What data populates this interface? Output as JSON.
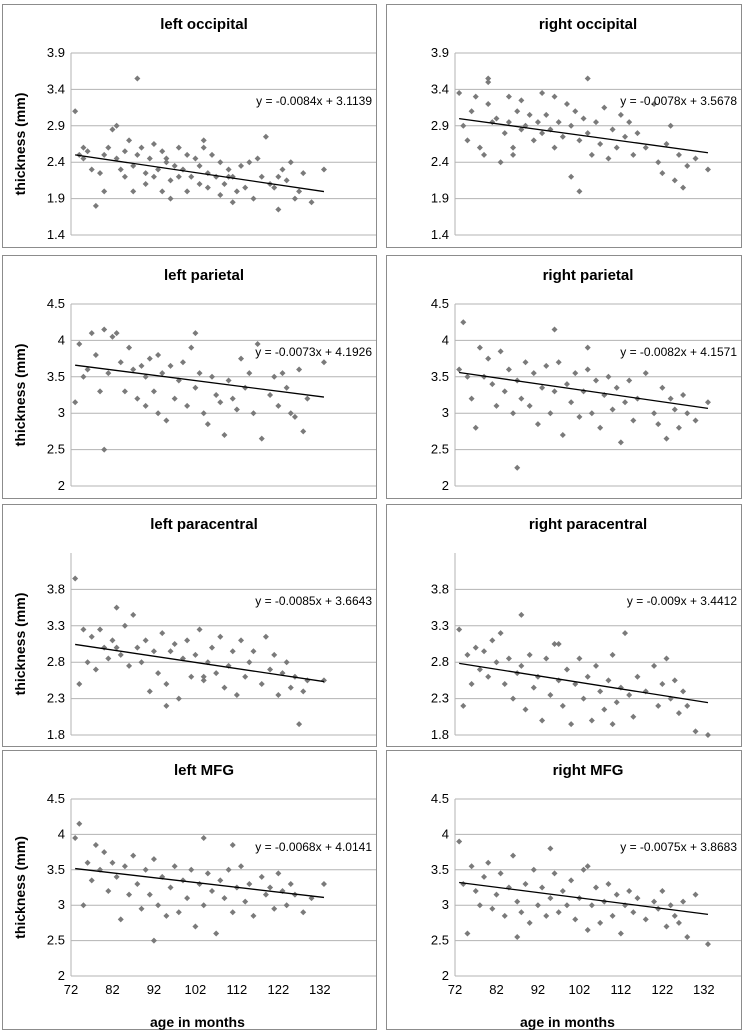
{
  "colors": {
    "marker": "#7a7a7a",
    "gridline": "#b3b3b3",
    "trend": "#000000",
    "panel_border": "#8c8c8c"
  },
  "chart_data": [
    {
      "type": "scatter",
      "title": "left occipital",
      "ylabel": "thickness (mm)",
      "xlabel": "",
      "xlim": [
        72,
        140
      ],
      "ylim": [
        1.4,
        3.9
      ],
      "yticks": [
        "1.4",
        "1.9",
        "2.4",
        "2.9",
        "3.4",
        "3.9"
      ],
      "xticks": [],
      "trendline": {
        "slope": -0.0084,
        "intercept": 3.1139,
        "x_range": [
          73,
          133
        ],
        "label": "y = -0.0084x + 3.1139"
      },
      "x": [
        73,
        74,
        75,
        75,
        76,
        77,
        78,
        79,
        80,
        80,
        81,
        82,
        83,
        83,
        84,
        85,
        85,
        86,
        87,
        87,
        88,
        89,
        90,
        90,
        91,
        92,
        92,
        93,
        94,
        94,
        95,
        96,
        96,
        97,
        98,
        98,
        99,
        100,
        100,
        101,
        102,
        103,
        103,
        104,
        105,
        105,
        106,
        107,
        108,
        108,
        109,
        110,
        111,
        111,
        112,
        113,
        114,
        115,
        116,
        117,
        118,
        119,
        120,
        121,
        122,
        122,
        123,
        124,
        125,
        126,
        127,
        128,
        130,
        133,
        88,
        95,
        104,
        110
      ],
      "y": [
        3.1,
        2.5,
        2.45,
        2.6,
        2.55,
        2.3,
        1.8,
        2.25,
        2.0,
        2.5,
        2.6,
        2.85,
        2.45,
        2.9,
        2.3,
        2.55,
        2.2,
        2.7,
        2.0,
        2.35,
        2.5,
        2.6,
        2.25,
        2.1,
        2.45,
        2.65,
        2.2,
        2.3,
        2.0,
        2.55,
        2.4,
        1.9,
        2.15,
        2.35,
        2.6,
        2.2,
        2.3,
        2.5,
        2.0,
        2.2,
        2.45,
        2.1,
        2.35,
        2.7,
        2.25,
        2.05,
        2.5,
        2.2,
        1.95,
        2.4,
        2.1,
        2.3,
        1.85,
        2.2,
        2.0,
        2.35,
        2.05,
        2.4,
        1.9,
        2.45,
        2.2,
        2.75,
        2.1,
        2.05,
        1.75,
        2.2,
        2.3,
        2.15,
        2.4,
        1.9,
        2.0,
        2.25,
        1.85,
        2.3,
        3.55,
        2.45,
        2.6,
        2.2
      ]
    },
    {
      "type": "scatter",
      "title": "right occipital",
      "ylabel": "",
      "xlabel": "",
      "xlim": [
        72,
        140
      ],
      "ylim": [
        1.4,
        3.9
      ],
      "yticks": [
        "1.4",
        "1.9",
        "2.4",
        "2.9",
        "3.4",
        "3.9"
      ],
      "xticks": [],
      "trendline": {
        "slope": -0.0078,
        "intercept": 3.5678,
        "x_range": [
          73,
          133
        ],
        "label": "y = -0.0078x + 3.5678"
      },
      "x": [
        73,
        74,
        75,
        76,
        77,
        78,
        79,
        80,
        80,
        81,
        82,
        83,
        84,
        85,
        85,
        86,
        87,
        88,
        88,
        89,
        90,
        91,
        92,
        93,
        93,
        94,
        95,
        96,
        97,
        98,
        99,
        100,
        100,
        101,
        102,
        102,
        103,
        104,
        105,
        106,
        107,
        108,
        109,
        110,
        111,
        112,
        113,
        114,
        115,
        116,
        118,
        120,
        121,
        122,
        123,
        124,
        125,
        126,
        127,
        128,
        130,
        133,
        80,
        86,
        96,
        104
      ],
      "y": [
        3.35,
        2.9,
        2.7,
        3.1,
        3.3,
        2.6,
        2.5,
        3.5,
        3.2,
        2.95,
        3.0,
        2.4,
        2.8,
        3.3,
        2.95,
        2.6,
        3.1,
        2.85,
        3.25,
        2.9,
        3.05,
        2.7,
        2.95,
        3.35,
        2.8,
        3.05,
        2.85,
        2.6,
        2.95,
        2.75,
        3.2,
        2.9,
        2.2,
        3.1,
        2.7,
        2.0,
        3.0,
        2.8,
        2.5,
        2.95,
        2.65,
        3.15,
        2.45,
        2.85,
        2.6,
        3.05,
        2.75,
        2.95,
        2.5,
        2.8,
        2.6,
        3.2,
        2.4,
        2.25,
        2.65,
        2.9,
        2.15,
        2.5,
        2.05,
        2.35,
        2.45,
        2.3,
        3.55,
        2.5,
        3.3,
        3.55
      ]
    },
    {
      "type": "scatter",
      "title": "left parietal",
      "ylabel": "thickness (mm)",
      "xlabel": "",
      "xlim": [
        72,
        140
      ],
      "ylim": [
        2,
        4.5
      ],
      "yticks": [
        "2",
        "2.5",
        "3",
        "3.5",
        "4",
        "4.5"
      ],
      "xticks": [],
      "trendline": {
        "slope": -0.0073,
        "intercept": 4.1926,
        "x_range": [
          73,
          133
        ],
        "label": "y = -0.0073x + 4.1926"
      },
      "x": [
        73,
        74,
        75,
        76,
        77,
        78,
        79,
        80,
        81,
        82,
        83,
        84,
        85,
        86,
        87,
        88,
        89,
        90,
        90,
        91,
        92,
        93,
        94,
        95,
        96,
        97,
        98,
        99,
        100,
        101,
        102,
        103,
        104,
        105,
        106,
        107,
        108,
        109,
        110,
        111,
        112,
        113,
        114,
        115,
        116,
        118,
        120,
        121,
        122,
        123,
        124,
        125,
        126,
        127,
        128,
        129,
        133,
        80,
        93,
        102,
        117
      ],
      "y": [
        3.15,
        3.95,
        3.5,
        3.6,
        4.1,
        3.8,
        3.3,
        4.15,
        3.55,
        4.05,
        4.1,
        3.7,
        3.3,
        3.9,
        3.6,
        3.2,
        3.65,
        3.1,
        3.5,
        3.75,
        3.3,
        3.0,
        3.55,
        2.9,
        3.65,
        3.2,
        3.45,
        3.7,
        3.1,
        3.9,
        3.35,
        3.55,
        3.0,
        2.85,
        3.5,
        3.25,
        3.15,
        2.7,
        3.45,
        3.2,
        3.05,
        3.75,
        3.35,
        3.55,
        3.0,
        2.65,
        3.25,
        3.5,
        3.1,
        3.55,
        3.35,
        3.0,
        2.95,
        3.6,
        2.75,
        3.2,
        3.7,
        2.5,
        3.8,
        4.1,
        3.95
      ]
    },
    {
      "type": "scatter",
      "title": "right parietal",
      "ylabel": "",
      "xlabel": "",
      "xlim": [
        72,
        140
      ],
      "ylim": [
        2,
        4.5
      ],
      "yticks": [
        "2",
        "2.5",
        "3",
        "3.5",
        "4",
        "4.5"
      ],
      "xticks": [],
      "trendline": {
        "slope": -0.0082,
        "intercept": 4.1571,
        "x_range": [
          73,
          133
        ],
        "label": "y = -0.0082x + 4.1571"
      },
      "x": [
        73,
        74,
        75,
        76,
        77,
        78,
        79,
        80,
        81,
        82,
        83,
        84,
        85,
        86,
        87,
        88,
        89,
        90,
        91,
        92,
        93,
        94,
        95,
        96,
        97,
        98,
        99,
        100,
        101,
        102,
        103,
        104,
        105,
        106,
        107,
        108,
        109,
        110,
        111,
        112,
        113,
        114,
        115,
        116,
        118,
        120,
        121,
        122,
        123,
        124,
        125,
        126,
        127,
        128,
        130,
        133,
        87,
        96,
        104
      ],
      "y": [
        3.6,
        4.25,
        3.5,
        3.2,
        2.8,
        3.9,
        3.5,
        3.75,
        3.4,
        3.1,
        3.85,
        3.3,
        3.6,
        3.0,
        3.45,
        3.2,
        3.7,
        3.1,
        3.55,
        2.85,
        3.35,
        3.65,
        3.0,
        3.3,
        3.7,
        2.7,
        3.4,
        3.15,
        3.55,
        2.95,
        3.3,
        3.6,
        3.0,
        3.45,
        2.8,
        3.25,
        3.5,
        3.05,
        3.35,
        2.6,
        3.15,
        3.45,
        2.9,
        3.2,
        3.55,
        3.0,
        2.85,
        3.35,
        2.65,
        3.2,
        3.05,
        2.8,
        3.25,
        3.0,
        2.9,
        3.15,
        2.25,
        4.15,
        3.9
      ]
    },
    {
      "type": "scatter",
      "title": "left paracentral",
      "ylabel": "thickness (mm)",
      "xlabel": "",
      "xlim": [
        72,
        140
      ],
      "ylim": [
        1.8,
        4.3
      ],
      "yticks": [
        "1.8",
        "2.3",
        "2.8",
        "3.3",
        "3.8"
      ],
      "xticks": [],
      "trendline": {
        "slope": -0.0085,
        "intercept": 3.6643,
        "x_range": [
          73,
          133
        ],
        "label": "y = -0.0085x + 3.6643"
      },
      "x": [
        73,
        74,
        75,
        76,
        77,
        78,
        79,
        80,
        81,
        82,
        83,
        84,
        85,
        86,
        87,
        88,
        89,
        90,
        91,
        92,
        93,
        94,
        95,
        96,
        97,
        98,
        99,
        100,
        101,
        102,
        103,
        104,
        105,
        106,
        107,
        108,
        109,
        110,
        111,
        112,
        113,
        114,
        115,
        116,
        118,
        119,
        120,
        121,
        122,
        123,
        124,
        125,
        126,
        127,
        128,
        129,
        133,
        83,
        95,
        104
      ],
      "y": [
        3.95,
        2.5,
        3.25,
        2.8,
        3.15,
        2.7,
        3.25,
        3.0,
        2.85,
        3.1,
        3.55,
        2.9,
        3.3,
        2.75,
        3.45,
        3.0,
        2.8,
        3.1,
        2.4,
        2.95,
        2.65,
        3.2,
        2.5,
        2.95,
        3.05,
        2.3,
        2.85,
        3.1,
        2.6,
        2.9,
        3.25,
        2.55,
        2.8,
        3.0,
        2.65,
        3.15,
        2.45,
        2.75,
        2.95,
        2.35,
        3.1,
        2.6,
        2.8,
        2.95,
        2.5,
        3.15,
        2.7,
        2.9,
        2.35,
        2.65,
        2.8,
        2.45,
        2.6,
        1.95,
        2.4,
        2.55,
        2.55,
        3.0,
        2.2,
        2.6
      ]
    },
    {
      "type": "scatter",
      "title": "right paracentral",
      "ylabel": "",
      "xlabel": "",
      "xlim": [
        72,
        140
      ],
      "ylim": [
        1.8,
        4.3
      ],
      "yticks": [
        "1.8",
        "2.3",
        "2.8",
        "3.3",
        "3.8"
      ],
      "xticks": [],
      "trendline": {
        "slope": -0.009,
        "intercept": 3.4412,
        "x_range": [
          73,
          133
        ],
        "label": "y = -0.009x + 3.4412"
      },
      "x": [
        73,
        74,
        75,
        76,
        77,
        78,
        79,
        80,
        81,
        82,
        83,
        84,
        85,
        86,
        87,
        88,
        89,
        90,
        91,
        92,
        93,
        94,
        95,
        96,
        97,
        98,
        99,
        100,
        101,
        102,
        103,
        104,
        105,
        106,
        107,
        108,
        109,
        110,
        111,
        112,
        113,
        114,
        115,
        116,
        118,
        120,
        121,
        122,
        123,
        124,
        125,
        126,
        127,
        128,
        130,
        133,
        88,
        97,
        110
      ],
      "y": [
        3.25,
        2.2,
        2.9,
        2.5,
        3.0,
        2.7,
        2.95,
        2.6,
        3.1,
        2.8,
        3.2,
        2.5,
        2.85,
        2.3,
        2.65,
        2.75,
        2.15,
        2.9,
        2.45,
        2.6,
        2.0,
        2.85,
        2.35,
        3.05,
        2.55,
        2.2,
        2.7,
        1.95,
        2.5,
        2.85,
        2.3,
        2.6,
        2.0,
        2.75,
        2.4,
        2.15,
        2.55,
        2.9,
        2.25,
        2.45,
        3.2,
        2.35,
        2.05,
        2.6,
        2.4,
        2.75,
        2.2,
        2.5,
        2.85,
        2.3,
        2.55,
        2.1,
        2.4,
        2.2,
        1.85,
        1.8,
        3.45,
        3.05,
        1.95
      ]
    },
    {
      "type": "scatter",
      "title": "left MFG",
      "ylabel": "thickness (mm)",
      "xlabel": "",
      "xlim": [
        72,
        140
      ],
      "ylim": [
        2,
        4.5
      ],
      "xticks": [
        "72",
        "82",
        "92",
        "102",
        "112",
        "122",
        "132"
      ],
      "yticks": [
        "2",
        "2.5",
        "3",
        "3.5",
        "4",
        "4.5"
      ],
      "trendline": {
        "slope": -0.0068,
        "intercept": 4.0141,
        "x_range": [
          73,
          133
        ],
        "label": "y = -0.0068x + 4.0141"
      },
      "x": [
        73,
        74,
        75,
        76,
        77,
        78,
        79,
        80,
        81,
        82,
        83,
        84,
        85,
        86,
        87,
        88,
        89,
        90,
        91,
        92,
        93,
        94,
        95,
        96,
        97,
        98,
        99,
        100,
        101,
        102,
        103,
        104,
        105,
        106,
        107,
        108,
        109,
        110,
        111,
        112,
        113,
        114,
        115,
        116,
        118,
        119,
        120,
        121,
        122,
        123,
        124,
        125,
        126,
        128,
        130,
        133,
        92,
        104,
        111
      ],
      "y": [
        3.95,
        4.15,
        3.0,
        3.6,
        3.35,
        3.85,
        3.5,
        3.75,
        3.2,
        3.6,
        3.4,
        2.8,
        3.55,
        3.15,
        3.7,
        3.3,
        2.95,
        3.5,
        3.15,
        3.65,
        3.0,
        3.4,
        2.85,
        3.25,
        3.55,
        2.9,
        3.35,
        3.1,
        3.5,
        2.7,
        3.3,
        3.0,
        3.45,
        3.2,
        2.6,
        3.35,
        3.1,
        3.5,
        2.9,
        3.25,
        3.55,
        3.05,
        3.3,
        2.85,
        3.4,
        3.15,
        3.25,
        2.95,
        3.45,
        3.2,
        3.0,
        3.3,
        3.15,
        2.9,
        3.1,
        3.3,
        2.5,
        3.95,
        3.85
      ]
    },
    {
      "type": "scatter",
      "title": "right MFG",
      "ylabel": "",
      "xlabel": "",
      "xlim": [
        72,
        140
      ],
      "ylim": [
        2,
        4.5
      ],
      "xticks": [
        "72",
        "82",
        "92",
        "102",
        "112",
        "122",
        "132"
      ],
      "yticks": [
        "2",
        "2.5",
        "3",
        "3.5",
        "4",
        "4.5"
      ],
      "trendline": {
        "slope": -0.0075,
        "intercept": 3.8683,
        "x_range": [
          73,
          133
        ],
        "label": "y = -0.0075x + 3.8683"
      },
      "x": [
        73,
        74,
        75,
        76,
        77,
        78,
        79,
        80,
        81,
        82,
        83,
        84,
        85,
        86,
        87,
        88,
        89,
        90,
        91,
        92,
        93,
        94,
        95,
        96,
        97,
        98,
        99,
        100,
        101,
        102,
        103,
        104,
        105,
        106,
        107,
        108,
        109,
        110,
        111,
        112,
        113,
        114,
        115,
        116,
        118,
        120,
        121,
        122,
        123,
        124,
        125,
        126,
        127,
        128,
        130,
        133,
        87,
        95,
        104
      ],
      "y": [
        3.9,
        3.3,
        2.6,
        3.55,
        3.2,
        3.0,
        3.4,
        3.6,
        2.95,
        3.15,
        3.45,
        2.85,
        3.25,
        3.7,
        3.05,
        2.9,
        3.3,
        2.75,
        3.5,
        3.0,
        3.25,
        2.85,
        3.1,
        3.45,
        2.9,
        3.2,
        3.0,
        3.35,
        2.8,
        3.1,
        3.5,
        2.65,
        3.0,
        3.25,
        2.75,
        3.05,
        3.3,
        2.85,
        3.15,
        2.6,
        3.0,
        3.2,
        2.9,
        3.1,
        2.8,
        3.05,
        2.95,
        3.2,
        2.7,
        3.0,
        2.85,
        2.75,
        3.05,
        2.55,
        3.15,
        2.45,
        2.55,
        3.8,
        3.55
      ]
    }
  ]
}
